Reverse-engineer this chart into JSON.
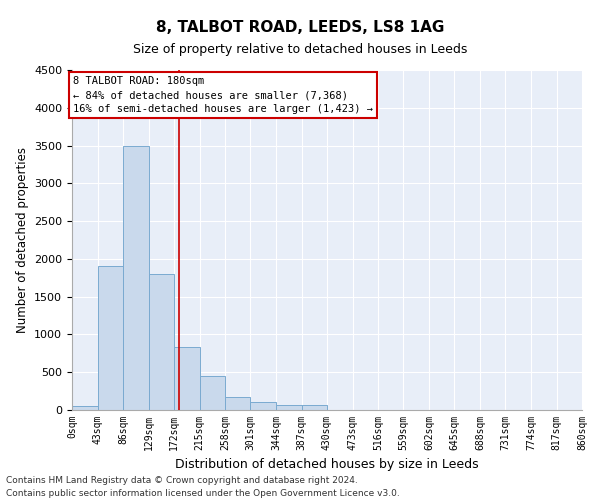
{
  "title": "8, TALBOT ROAD, LEEDS, LS8 1AG",
  "subtitle": "Size of property relative to detached houses in Leeds",
  "xlabel": "Distribution of detached houses by size in Leeds",
  "ylabel": "Number of detached properties",
  "bar_color": "#c9d9ec",
  "bar_edge_color": "#7aaad0",
  "vline_color": "#cc0000",
  "vline_x": 180,
  "bin_edges": [
    0,
    43,
    86,
    129,
    172,
    215,
    258,
    301,
    344,
    387,
    430,
    473,
    516,
    559,
    602,
    645,
    688,
    731,
    774,
    817,
    860
  ],
  "bin_labels": [
    "0sqm",
    "43sqm",
    "86sqm",
    "129sqm",
    "172sqm",
    "215sqm",
    "258sqm",
    "301sqm",
    "344sqm",
    "387sqm",
    "430sqm",
    "473sqm",
    "516sqm",
    "559sqm",
    "602sqm",
    "645sqm",
    "688sqm",
    "731sqm",
    "774sqm",
    "817sqm",
    "860sqm"
  ],
  "counts": [
    50,
    1900,
    3500,
    1800,
    830,
    450,
    170,
    100,
    70,
    60,
    0,
    0,
    0,
    0,
    0,
    0,
    0,
    0,
    0,
    0
  ],
  "ylim": [
    0,
    4500
  ],
  "yticks": [
    0,
    500,
    1000,
    1500,
    2000,
    2500,
    3000,
    3500,
    4000,
    4500
  ],
  "annotation_title": "8 TALBOT ROAD: 180sqm",
  "annotation_line1": "← 84% of detached houses are smaller (7,368)",
  "annotation_line2": "16% of semi-detached houses are larger (1,423) →",
  "annotation_box_color": "#ffffff",
  "annotation_box_edge_color": "#cc0000",
  "footer_line1": "Contains HM Land Registry data © Crown copyright and database right 2024.",
  "footer_line2": "Contains public sector information licensed under the Open Government Licence v3.0.",
  "background_color": "#e8eef8",
  "figsize": [
    6.0,
    5.0
  ],
  "dpi": 100
}
